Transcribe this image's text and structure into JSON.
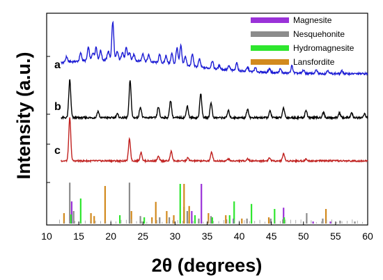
{
  "chart_data": {
    "type": "line",
    "xlabel": "2θ (degrees)",
    "ylabel": "Intensity (a.u.)",
    "xlim": [
      10,
      60
    ],
    "xticks": [
      10,
      15,
      20,
      25,
      30,
      35,
      40,
      45,
      50,
      55,
      60
    ],
    "legend_position": "top-right",
    "series": [
      {
        "name": "a",
        "color": "#1c1cd4",
        "baseline": 0.25,
        "peaks": [
          [
            13.1,
            0.1
          ],
          [
            15.3,
            0.14
          ],
          [
            16.5,
            0.23
          ],
          [
            17.2,
            0.14
          ],
          [
            17.7,
            0.24
          ],
          [
            18.4,
            0.17
          ],
          [
            19.6,
            0.16
          ],
          [
            20.3,
            0.68
          ],
          [
            21.0,
            0.15
          ],
          [
            21.8,
            0.15
          ],
          [
            22.4,
            0.22
          ],
          [
            22.9,
            0.14
          ],
          [
            23.6,
            0.11
          ],
          [
            25.0,
            0.14
          ],
          [
            25.9,
            0.12
          ],
          [
            27.6,
            0.14
          ],
          [
            28.6,
            0.14
          ],
          [
            29.5,
            0.19
          ],
          [
            30.3,
            0.3
          ],
          [
            30.9,
            0.35
          ],
          [
            31.6,
            0.17
          ],
          [
            32.7,
            0.22
          ],
          [
            33.8,
            0.14
          ],
          [
            35.8,
            0.14
          ],
          [
            36.9,
            0.07
          ],
          [
            38.4,
            0.07
          ],
          [
            39.6,
            0.14
          ],
          [
            41.3,
            0.07
          ],
          [
            42.5,
            0.07
          ],
          [
            44.7,
            0.07
          ],
          [
            46.4,
            0.07
          ],
          [
            48.2,
            0.13
          ],
          [
            50.0,
            0.06
          ],
          [
            52.0,
            0.06
          ],
          [
            53.8,
            0.06
          ],
          [
            56.0,
            0.05
          ]
        ]
      },
      {
        "name": "b",
        "color": "#000000",
        "baseline": 0.0,
        "peaks": [
          [
            13.6,
            0.7
          ],
          [
            18.0,
            0.12
          ],
          [
            21.0,
            0.07
          ],
          [
            23.0,
            0.68
          ],
          [
            24.6,
            0.2
          ],
          [
            27.4,
            0.2
          ],
          [
            29.3,
            0.32
          ],
          [
            31.9,
            0.22
          ],
          [
            34.0,
            0.45
          ],
          [
            35.6,
            0.28
          ],
          [
            38.3,
            0.13
          ],
          [
            41.3,
            0.16
          ],
          [
            44.8,
            0.12
          ],
          [
            46.9,
            0.18
          ],
          [
            50.4,
            0.14
          ],
          [
            53.1,
            0.1
          ],
          [
            55.6,
            0.09
          ],
          [
            57.5,
            0.08
          ],
          [
            59.5,
            0.07
          ]
        ]
      },
      {
        "name": "c",
        "color": "#c0201e",
        "baseline": 0.0,
        "peaks": [
          [
            13.6,
            1.0
          ],
          [
            22.9,
            0.5
          ],
          [
            24.7,
            0.2
          ],
          [
            27.4,
            0.1
          ],
          [
            29.4,
            0.22
          ],
          [
            32.0,
            0.07
          ],
          [
            35.7,
            0.2
          ],
          [
            38.3,
            0.05
          ],
          [
            41.3,
            0.05
          ],
          [
            44.7,
            0.07
          ],
          [
            46.9,
            0.17
          ],
          [
            50.4,
            0.04
          ]
        ]
      }
    ],
    "reference_patterns": [
      {
        "name": "Magnesite",
        "color": "#9a32d8",
        "sticks": [
          [
            13.9,
            0.53
          ],
          [
            32.6,
            0.3
          ],
          [
            34.1,
            0.95
          ],
          [
            39.1,
            0.12
          ],
          [
            44.9,
            0.1
          ],
          [
            46.9,
            0.38
          ],
          [
            51.5,
            0.05
          ],
          [
            54.2,
            0.05
          ]
        ]
      },
      {
        "name": "Nesquehonite",
        "color": "#8c8c8c",
        "sticks": [
          [
            13.6,
            0.98
          ],
          [
            14.2,
            0.3
          ],
          [
            22.9,
            0.98
          ],
          [
            24.6,
            0.18
          ],
          [
            27.6,
            0.15
          ],
          [
            29.1,
            0.15
          ],
          [
            31.9,
            0.3
          ],
          [
            33.7,
            0.12
          ],
          [
            35.6,
            0.18
          ],
          [
            38.0,
            0.1
          ],
          [
            41.2,
            0.12
          ],
          [
            44.9,
            0.12
          ],
          [
            46.8,
            0.1
          ],
          [
            50.5,
            0.25
          ],
          [
            53.0,
            0.12
          ],
          [
            55.7,
            0.07
          ],
          [
            58.0,
            0.05
          ]
        ]
      },
      {
        "name": "Hydromagnesite",
        "color": "#2ee62e",
        "sticks": [
          [
            13.8,
            0.22
          ],
          [
            15.3,
            0.6
          ],
          [
            21.4,
            0.2
          ],
          [
            25.2,
            0.15
          ],
          [
            30.8,
            0.95
          ],
          [
            31.4,
            0.4
          ],
          [
            33.1,
            0.2
          ],
          [
            35.8,
            0.15
          ],
          [
            38.5,
            0.2
          ],
          [
            39.2,
            0.53
          ],
          [
            41.9,
            0.47
          ],
          [
            45.5,
            0.35
          ],
          [
            47.0,
            0.15
          ]
        ]
      },
      {
        "name": "Lansfordite",
        "color": "#d28a1e",
        "sticks": [
          [
            12.7,
            0.25
          ],
          [
            16.9,
            0.25
          ],
          [
            17.4,
            0.18
          ],
          [
            19.1,
            0.9
          ],
          [
            23.2,
            0.3
          ],
          [
            26.4,
            0.15
          ],
          [
            27.0,
            0.52
          ],
          [
            28.7,
            0.3
          ],
          [
            29.8,
            0.2
          ],
          [
            31.4,
            0.95
          ],
          [
            32.2,
            0.42
          ],
          [
            35.2,
            0.25
          ],
          [
            37.9,
            0.2
          ],
          [
            40.4,
            0.12
          ],
          [
            44.6,
            0.15
          ],
          [
            53.5,
            0.35
          ]
        ]
      }
    ]
  }
}
